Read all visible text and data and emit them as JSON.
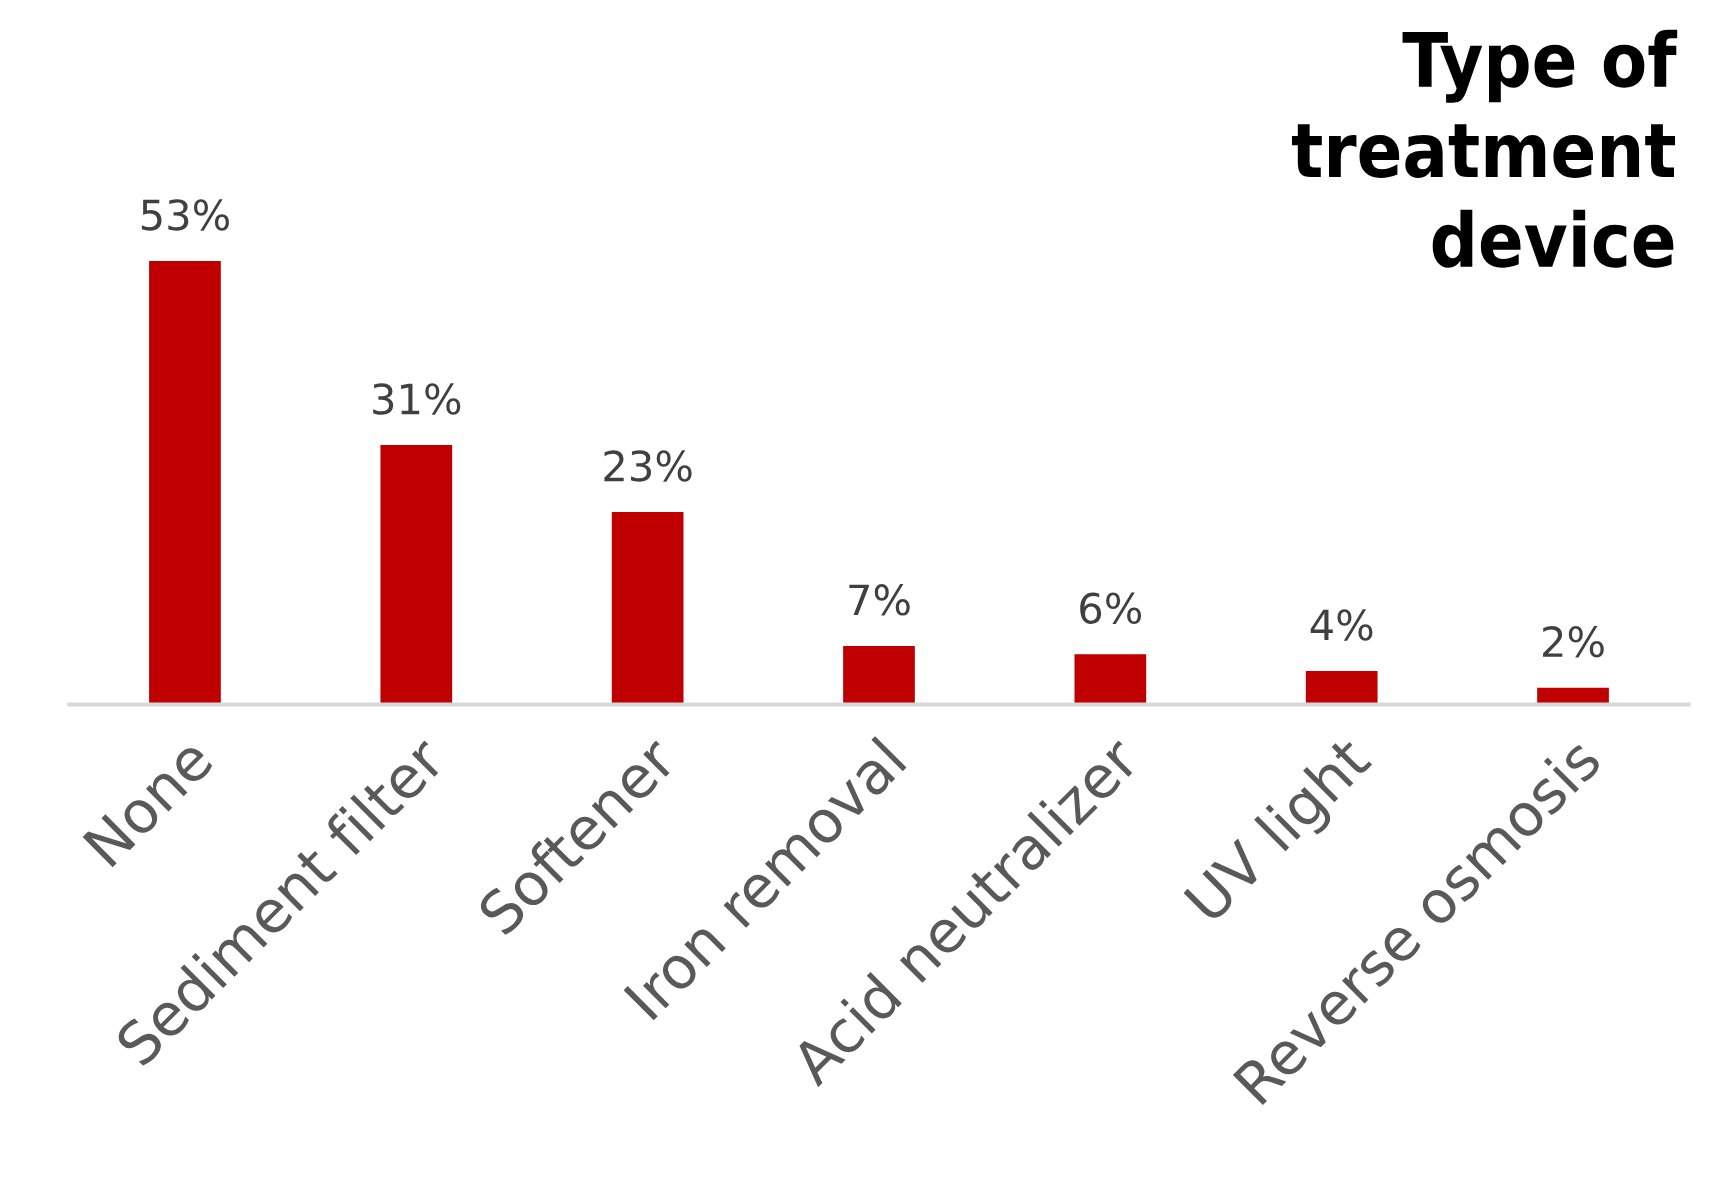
{
  "chart_data": {
    "type": "bar",
    "title": "Type of\ntreatment\ndevice",
    "categories": [
      "None",
      "Sediment filter",
      "Softener",
      "Iron removal",
      "Acid neutralizer",
      "UV light",
      "Reverse osmosis"
    ],
    "values": [
      53,
      31,
      23,
      7,
      6,
      4,
      2
    ],
    "value_labels": [
      "53%",
      "31%",
      "23%",
      "7%",
      "6%",
      "4%",
      "2%"
    ],
    "color": "#c00000",
    "grid": false,
    "legend": false
  }
}
